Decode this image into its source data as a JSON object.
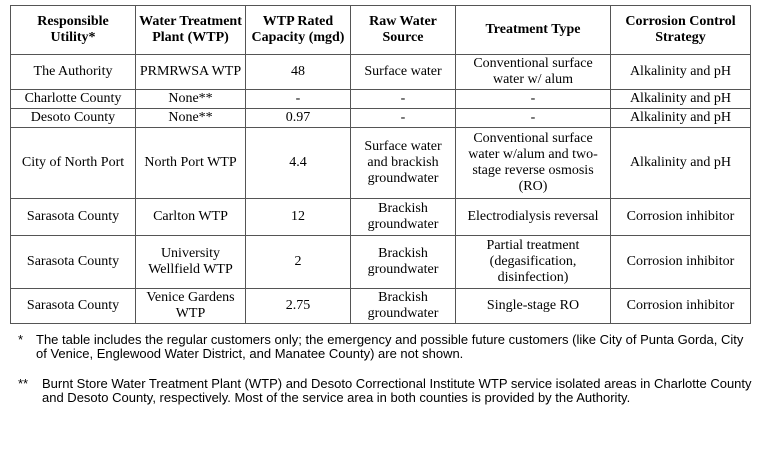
{
  "table": {
    "header": [
      "Responsible Utility*",
      "Water Treatment Plant (WTP)",
      "WTP Rated Capacity (mgd)",
      "Raw Water Source",
      "Treatment Type",
      "Corrosion Control Strategy"
    ],
    "rows": [
      [
        "The Authority",
        "PRMRWSA WTP",
        48,
        "Surface water",
        "Conventional surface water w/ alum",
        "Alkalinity and pH"
      ],
      [
        "Charlotte County",
        "None**",
        "-",
        "-",
        "-",
        "Alkalinity and pH"
      ],
      [
        "Desoto County",
        "None**",
        0.97,
        "-",
        "-",
        "Alkalinity and pH"
      ],
      [
        "City of North Port",
        "North Port WTP",
        4.4,
        "Surface water and brackish groundwater",
        "Conventional surface water w/alum and two-stage reverse osmosis (RO)",
        "Alkalinity and pH"
      ],
      [
        "Sarasota County",
        "Carlton WTP",
        12,
        "Brackish groundwater",
        "Electrodialysis reversal",
        "Corrosion inhibitor"
      ],
      [
        "Sarasota County",
        "University Wellfield WTP",
        2,
        "Brackish groundwater",
        "Partial treatment (degasification, disinfection)",
        "Corrosion inhibitor"
      ],
      [
        "Sarasota County",
        "Venice Gardens WTP",
        2.75,
        "Brackish groundwater",
        "Single-stage RO",
        "Corrosion inhibitor"
      ]
    ]
  },
  "footnotes": [
    {
      "marker": "*",
      "text": "The table includes the regular customers only; the emergency and possible future customers (like City of Punta Gorda, City of Venice, Englewood Water District, and Manatee County) are not shown."
    },
    {
      "marker": "**",
      "text": "Burnt Store Water Treatment Plant (WTP) and Desoto Correctional Institute WTP service isolated areas in Charlotte County and Desoto County, respectively. Most of the service area in both counties is provided by the Authority."
    }
  ]
}
